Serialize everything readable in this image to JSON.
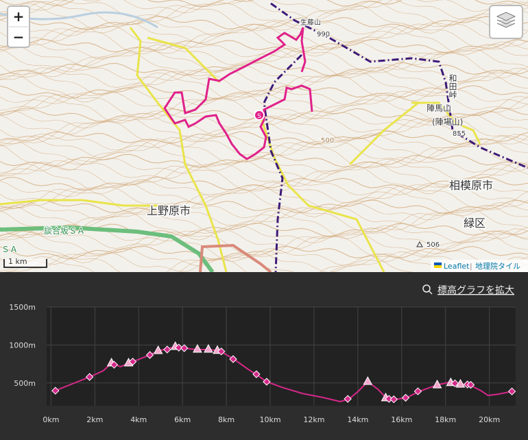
{
  "map": {
    "zoom_in": "+",
    "zoom_out": "−",
    "scale": "1 km",
    "labels": {
      "mountain": "生藤山",
      "mountain_elev": "990",
      "pass": "和田峠",
      "peak": "陣馬山",
      "peak_alt": "(陣場山)",
      "peak_elev": "855",
      "city_east": "相模原市",
      "ward": "緑区",
      "city_west": "上野原市",
      "service_area": "談合坂ＳＡ",
      "service_area_edge": "ＳＡ",
      "spot_height": "506",
      "contour": "500",
      "start": "S"
    },
    "attribution": {
      "leaflet": "Leaflet",
      "separator": "|",
      "tiles": "地理院タイル"
    }
  },
  "elevation_panel": {
    "expand_link": "標高グラフを拡大"
  },
  "chart_data": {
    "type": "line",
    "color": "#d6288a",
    "grid": true,
    "x": [
      0.19,
      0.82,
      1.76,
      2.38,
      2.76,
      3.17,
      3.54,
      3.95,
      4.51,
      4.89,
      5.67,
      6.08,
      6.61,
      7.24,
      7.71,
      8.34,
      8.96,
      9.44,
      9.84,
      10.53,
      11.47,
      12.41,
      13.2,
      13.6,
      13.98,
      14.45,
      14.92,
      15.33,
      15.7,
      16.24,
      16.8,
      17.59,
      18.12,
      18.53,
      19.06,
      19.62,
      19.94,
      20.41,
      21.03
    ],
    "values": [
      398,
      471,
      579,
      660,
      760,
      714,
      760,
      805,
      868,
      922,
      976,
      958,
      940,
      940,
      922,
      814,
      687,
      597,
      516,
      443,
      362,
      308,
      254,
      290,
      380,
      516,
      416,
      290,
      281,
      308,
      389,
      471,
      507,
      489,
      480,
      398,
      335,
      353,
      389
    ],
    "markers": {
      "x": [
        0.2,
        1.76,
        2.76,
        2.88,
        3.54,
        3.73,
        4.51,
        4.89,
        5.3,
        5.67,
        5.83,
        6.08,
        6.68,
        7.18,
        7.59,
        7.77,
        8.31,
        9.37,
        9.84,
        13.54,
        14.45,
        15.27,
        15.42,
        15.64,
        16.18,
        16.74,
        17.62,
        18.24,
        18.43,
        18.68,
        19.0,
        19.15,
        21.03
      ],
      "values": [
        398,
        579,
        760,
        740,
        760,
        780,
        868,
        922,
        940,
        976,
        965,
        958,
        940,
        940,
        925,
        915,
        814,
        615,
        516,
        290,
        516,
        300,
        290,
        285,
        305,
        390,
        471,
        500,
        495,
        480,
        480,
        475,
        389
      ],
      "shapes": [
        "diamond",
        "diamond",
        "triangle",
        "diamond",
        "triangle",
        "diamond",
        "diamond",
        "triangle",
        "diamond",
        "triangle",
        "diamond",
        "diamond",
        "triangle",
        "triangle",
        "triangle",
        "diamond",
        "diamond",
        "diamond",
        "diamond",
        "diamond",
        "triangle",
        "triangle",
        "diamond",
        "diamond",
        "diamond",
        "diamond",
        "triangle",
        "triangle",
        "diamond",
        "triangle",
        "diamond",
        "diamond",
        "diamond"
      ]
    },
    "xlim": [
      -0.2,
      21.2
    ],
    "xticks": [
      {
        "value": 0,
        "label": "0km"
      },
      {
        "value": 2,
        "label": "2km"
      },
      {
        "value": 4,
        "label": "4km"
      },
      {
        "value": 6,
        "label": "6km"
      },
      {
        "value": 8,
        "label": "8km"
      },
      {
        "value": 10,
        "label": "10km"
      },
      {
        "value": 12,
        "label": "12km"
      },
      {
        "value": 14,
        "label": "14km"
      },
      {
        "value": 16,
        "label": "16km"
      },
      {
        "value": 18,
        "label": "18km"
      },
      {
        "value": 20,
        "label": "20km"
      }
    ],
    "ylim": [
      200,
      1500
    ],
    "yticks": [
      {
        "value": 500,
        "label": "500m"
      },
      {
        "value": 1000,
        "label": "1000m"
      },
      {
        "value": 1500,
        "label": "1500m"
      }
    ]
  }
}
